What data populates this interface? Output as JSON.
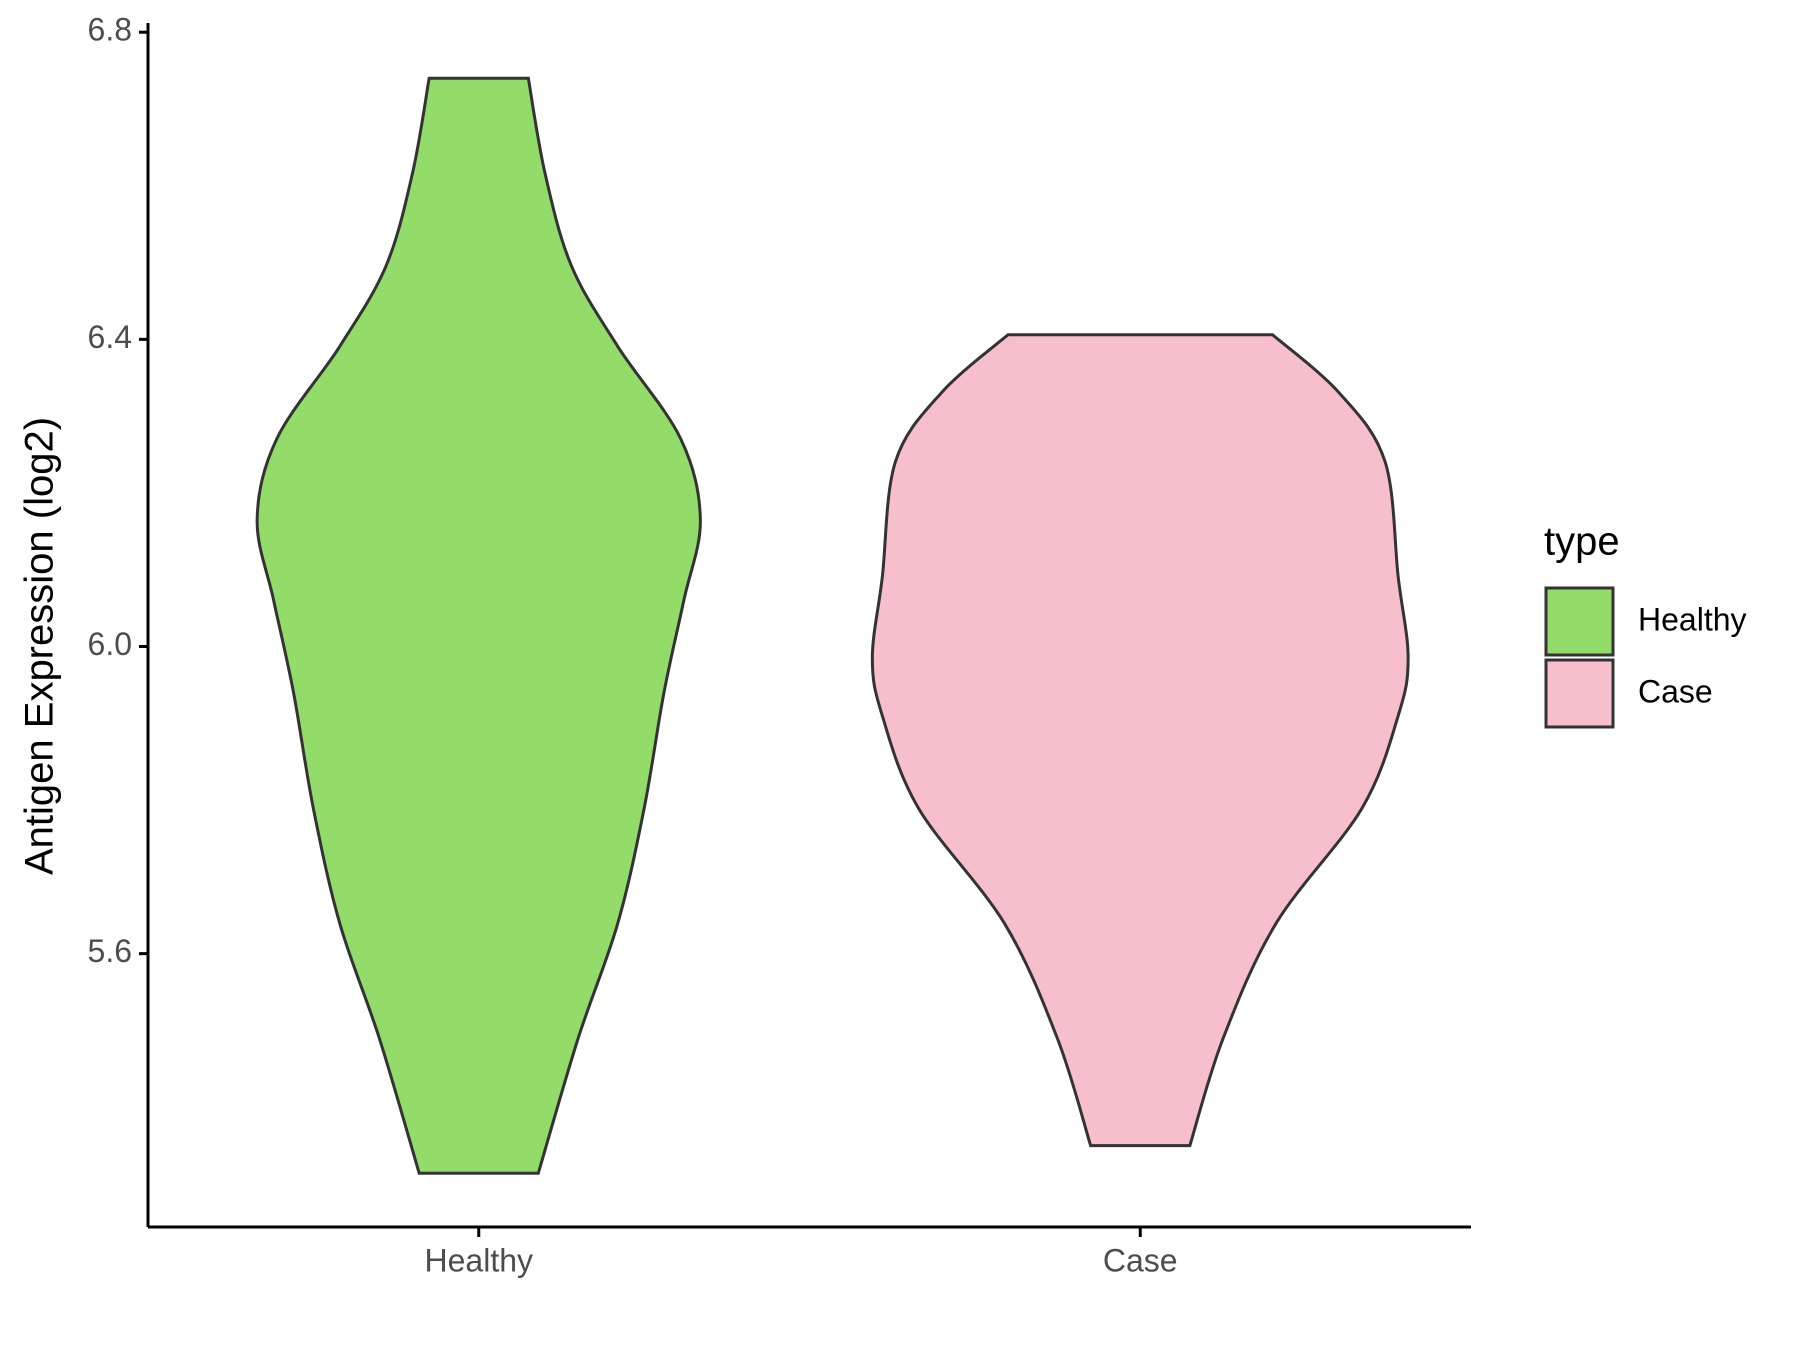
{
  "chart_data": {
    "type": "violin",
    "y_label": "Antigen Expression (log2)",
    "categories": [
      "Healthy",
      "Case"
    ],
    "legend_title": "type",
    "legend_position": "right",
    "ylim": [
      5.244,
      6.812
    ],
    "yticks": [
      5.6,
      {
        "value": 6,
        "label": "6.0"
      },
      6.4,
      6.8
    ],
    "series": [
      {
        "name": "Healthy",
        "color": "#93dc6a",
        "values": [
          5.314,
          5.489,
          5.639,
          5.789,
          5.94,
          6.06,
          6.165,
          6.271,
          6.391,
          6.496,
          6.617,
          6.74
        ],
        "density": [
          0.18,
          0.3,
          0.42,
          0.5,
          0.56,
          0.62,
          0.67,
          0.61,
          0.42,
          0.28,
          0.2,
          0.15
        ]
      },
      {
        "name": "Case",
        "color": "#f7bfcb",
        "values": [
          5.35,
          5.489,
          5.639,
          5.789,
          5.91,
          5.985,
          6.09,
          6.241,
          6.331,
          6.406
        ],
        "density": [
          0.15,
          0.25,
          0.41,
          0.67,
          0.78,
          0.81,
          0.78,
          0.74,
          0.6,
          0.4
        ]
      }
    ]
  }
}
